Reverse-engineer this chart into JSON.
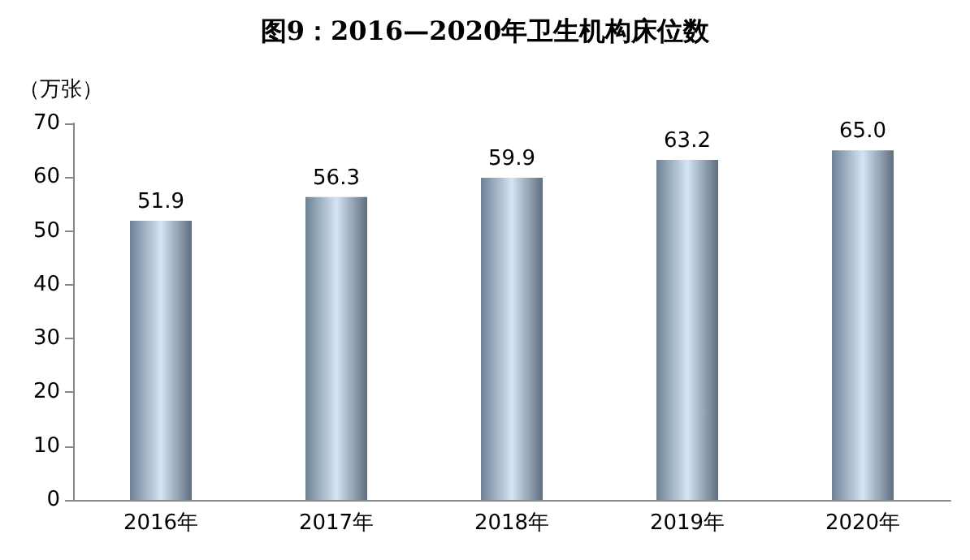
{
  "chart_data": {
    "type": "bar",
    "title": "图9：2016—2020年卫生机构床位数",
    "ylabel": "（万张）",
    "categories": [
      "2016年",
      "2017年",
      "2018年",
      "2019年",
      "2020年"
    ],
    "values": [
      51.9,
      56.3,
      59.9,
      63.2,
      65.0
    ],
    "value_labels": [
      "51.9",
      "56.3",
      "59.9",
      "63.2",
      "65.0"
    ],
    "color": "#a9c8e6",
    "ylim": [
      0,
      70
    ],
    "yticks": [
      0,
      10,
      20,
      30,
      40,
      50,
      60,
      70
    ],
    "grid": false
  }
}
